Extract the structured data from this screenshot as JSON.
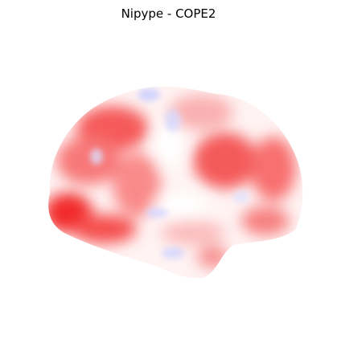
{
  "title": "Nipype - COPE2"
}
